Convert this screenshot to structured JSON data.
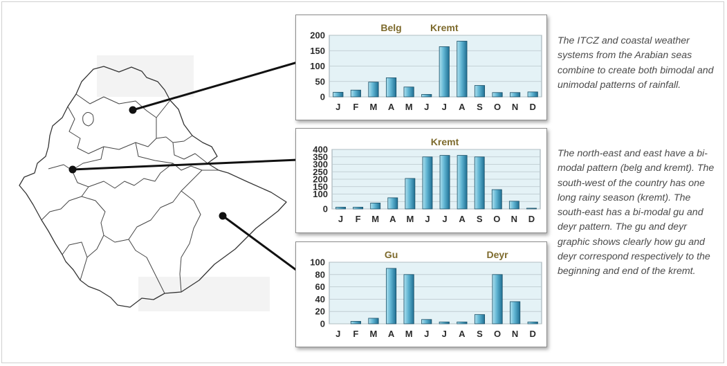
{
  "chart_data": [
    {
      "type": "bar",
      "categories": [
        "J",
        "F",
        "M",
        "A",
        "M",
        "J",
        "J",
        "A",
        "S",
        "O",
        "N",
        "D"
      ],
      "values": [
        15,
        22,
        48,
        62,
        32,
        8,
        163,
        181,
        37,
        14,
        14,
        16
      ],
      "ylim": [
        0,
        200
      ],
      "yticks": [
        0,
        50,
        100,
        150,
        200
      ],
      "grid": true,
      "annotations": [
        "Belg",
        "Kremt"
      ]
    },
    {
      "type": "bar",
      "categories": [
        "J",
        "F",
        "M",
        "A",
        "M",
        "J",
        "J",
        "A",
        "S",
        "O",
        "N",
        "D"
      ],
      "values": [
        12,
        12,
        40,
        75,
        205,
        350,
        360,
        360,
        350,
        130,
        52,
        5
      ],
      "ylim": [
        0,
        400
      ],
      "yticks": [
        0,
        50,
        100,
        150,
        200,
        250,
        300,
        350,
        400
      ],
      "ytick_labels_shown": [
        "0",
        "100",
        "150",
        "200",
        "250",
        "300",
        "350",
        "400"
      ],
      "grid": true,
      "annotations": [
        "Kremt"
      ]
    },
    {
      "type": "bar",
      "categories": [
        "J",
        "F",
        "M",
        "A",
        "M",
        "J",
        "J",
        "A",
        "S",
        "O",
        "N",
        "D"
      ],
      "values": [
        0,
        4,
        9,
        90,
        80,
        7,
        3,
        3,
        15,
        80,
        36,
        3
      ],
      "ylim": [
        0,
        100
      ],
      "yticks": [
        0,
        20,
        40,
        60,
        80,
        100
      ],
      "grid": true,
      "annotations": [
        "Gu",
        "Deyr"
      ]
    }
  ],
  "colors": {
    "bar_fill_light": "#aee1ef",
    "bar_fill_dark": "#1f6f93",
    "plot_background": "#e4f2f6",
    "annotation_text": "#7d6a2c",
    "axis_text": "#2b2b2b"
  },
  "text": {
    "paragraph1": "The ITCZ and coastal weather systems from the Arabian seas combine to create both bimodal and unimodal patterns of rainfall.",
    "paragraph2": "The north-east and east have a bi-modal pattern (belg and kremt). The south-west of the country has one long rainy season (kremt). The south-east has a bi-modal gu and deyr pattern. The gu and deyr graphic shows clearly how gu and deyr correspond respectively to the beginning and end of the kremt."
  }
}
